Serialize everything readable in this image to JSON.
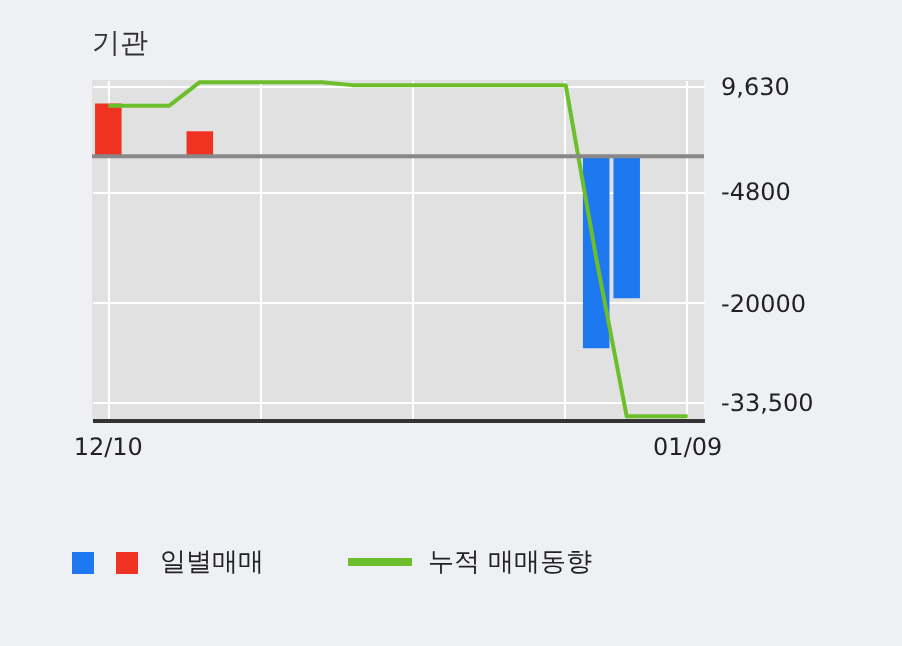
{
  "chart_data": {
    "type": "bar",
    "title": "기관",
    "categories": [
      "12/10",
      null,
      null,
      null,
      null,
      null,
      null,
      null,
      null,
      null,
      null,
      null,
      null,
      null,
      null,
      null,
      null,
      null,
      null,
      "01/09"
    ],
    "series": [
      {
        "name": "일별매매",
        "colors": [
          "#f03222",
          null,
          null,
          "#f03222",
          null,
          null,
          null,
          null,
          null,
          null,
          null,
          null,
          null,
          null,
          null,
          null,
          "#1e78f0",
          "#1e78f0",
          null,
          null
        ],
        "values": [
          7200,
          null,
          null,
          3400,
          null,
          null,
          null,
          null,
          null,
          null,
          null,
          null,
          null,
          null,
          null,
          null,
          -26200,
          -19400,
          null,
          null
        ]
      },
      {
        "name": "누적 매매동향",
        "type": "line",
        "color": "#6cbf2b",
        "values": [
          6900,
          6900,
          6900,
          10100,
          10100,
          10100,
          10100,
          10100,
          9700,
          9700,
          9700,
          9700,
          9700,
          9700,
          9700,
          9700,
          -13900,
          -35500,
          -35500,
          -35500
        ]
      }
    ],
    "ylim": [
      -36000,
      10400
    ],
    "yticks": [
      {
        "value": 9630,
        "label": "9,630"
      },
      -4800,
      -20000,
      {
        "value": -33500,
        "label": "-33,500"
      }
    ],
    "grid": true,
    "legend": "bottom",
    "ref_lines": [
      {
        "axis": "y",
        "value": 0,
        "color": "#888888"
      }
    ]
  }
}
